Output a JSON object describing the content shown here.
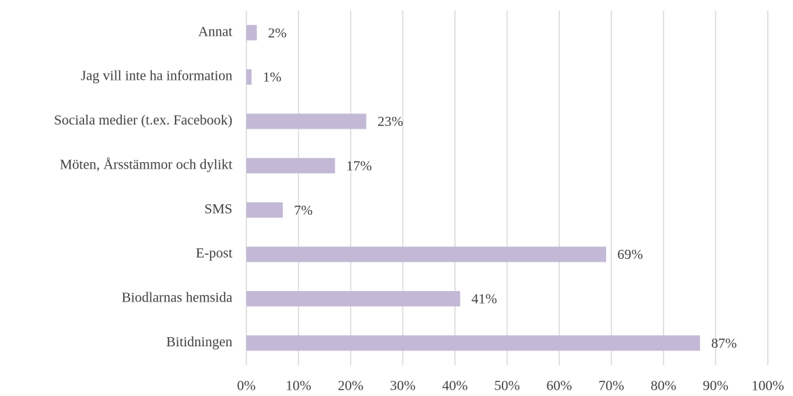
{
  "chart_data": {
    "type": "barh",
    "categories": [
      "Annat",
      "Jag vill inte ha information",
      "Sociala medier (t.ex. Facebook)",
      "Möten, Årsstämmor och dylikt",
      "SMS",
      "E-post",
      "Biodlarnas hemsida",
      "Bitidningen"
    ],
    "values": [
      2,
      1,
      23,
      17,
      7,
      69,
      41,
      87
    ],
    "value_labels": [
      "2%",
      "1%",
      "23%",
      "17%",
      "7%",
      "69%",
      "41%",
      "87%"
    ],
    "color": "#c3b9d6",
    "xlim": [
      0,
      100
    ],
    "xticks": [
      {
        "value": 0,
        "label": "0%"
      },
      {
        "value": 10,
        "label": "10%"
      },
      {
        "value": 20,
        "label": "20%"
      },
      {
        "value": 30,
        "label": "30%"
      },
      {
        "value": 40,
        "label": "40%"
      },
      {
        "value": 50,
        "label": "50%"
      },
      {
        "value": 60,
        "label": "60%"
      },
      {
        "value": 70,
        "label": "70%"
      },
      {
        "value": 80,
        "label": "80%"
      },
      {
        "value": 90,
        "label": "90%"
      },
      {
        "value": 100,
        "label": "100%"
      }
    ],
    "grid": true
  }
}
